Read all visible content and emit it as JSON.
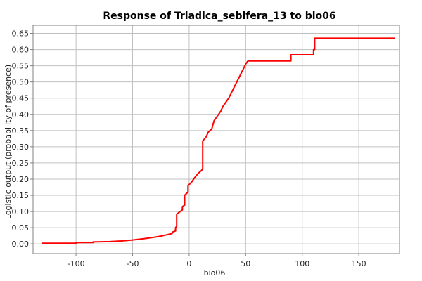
{
  "chart_data": {
    "type": "line",
    "title": "Response of Triadica_sebifera_13 to bio06",
    "xlabel": "bio06",
    "ylabel": "Logistic output (probability of presence)",
    "xlim": [
      -138,
      186
    ],
    "ylim": [
      -0.03,
      0.675
    ],
    "xticks": [
      -100,
      -50,
      0,
      50,
      100,
      150
    ],
    "xtick_labels": [
      "-100",
      "-50",
      "0",
      "50",
      "100",
      "150"
    ],
    "yticks": [
      0.0,
      0.05,
      0.1,
      0.15,
      0.2,
      0.25,
      0.3,
      0.35,
      0.4,
      0.45,
      0.5,
      0.55,
      0.6,
      0.65
    ],
    "ytick_labels": [
      "0.00",
      "0.05",
      "0.10",
      "0.15",
      "0.20",
      "0.25",
      "0.30",
      "0.35",
      "0.40",
      "0.45",
      "0.50",
      "0.55",
      "0.60",
      "0.65"
    ],
    "grid": true,
    "series": [
      {
        "color": "#ff0000",
        "x": [
          -130,
          -100,
          -100,
          -85,
          -85,
          -70,
          -60,
          -50,
          -40,
          -30,
          -25,
          -20,
          -15,
          -15,
          -12,
          -12,
          -11,
          -11,
          -6,
          -6,
          -4,
          -4,
          -1,
          -1,
          2,
          5,
          8,
          11,
          12,
          12,
          15,
          17,
          20,
          22,
          25,
          28,
          30,
          35,
          40,
          45,
          50,
          52,
          60,
          70,
          80,
          90,
          90,
          100,
          110,
          110,
          111,
          111,
          150,
          182
        ],
        "y": [
          0.002,
          0.002,
          0.004,
          0.004,
          0.006,
          0.007,
          0.009,
          0.012,
          0.016,
          0.021,
          0.024,
          0.028,
          0.032,
          0.036,
          0.04,
          0.05,
          0.055,
          0.092,
          0.105,
          0.115,
          0.12,
          0.15,
          0.16,
          0.18,
          0.19,
          0.205,
          0.218,
          0.227,
          0.232,
          0.318,
          0.33,
          0.345,
          0.355,
          0.38,
          0.395,
          0.41,
          0.425,
          0.45,
          0.485,
          0.52,
          0.555,
          0.565,
          0.565,
          0.565,
          0.565,
          0.565,
          0.584,
          0.584,
          0.584,
          0.6,
          0.6,
          0.635,
          0.635,
          0.635
        ]
      }
    ]
  }
}
